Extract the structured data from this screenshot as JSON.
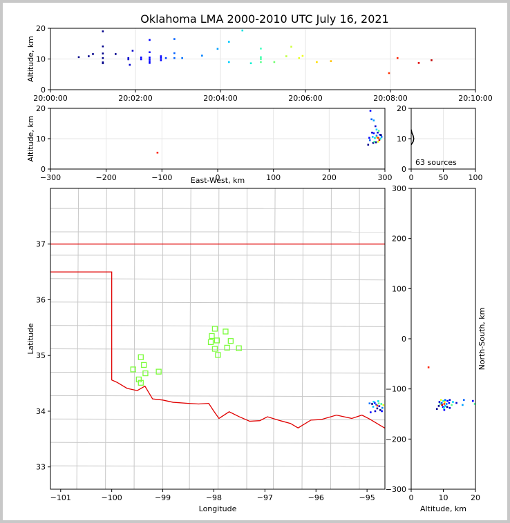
{
  "title": "Oklahoma LMA 2000-2010 UTC July 16, 2021",
  "colors": {
    "state_border": "#e00000",
    "county_lines": "#c8c8c8",
    "stations": "#7cfc3c",
    "grid": "#e6e6e6"
  },
  "chart_data": [
    {
      "type": "scatter",
      "id": "time-altitude",
      "ylabel": "Altitude, km",
      "xlim": [
        "20:00:00",
        "20:10:00"
      ],
      "ylim": [
        0,
        20
      ],
      "xticks": [
        "20:00:00",
        "20:02:00",
        "20:04:00",
        "20:06:00",
        "20:08:00",
        "20:10:00"
      ],
      "yticks": [
        "0",
        "10",
        "20"
      ],
      "points_time_s": [
        [
          40,
          10.6,
          "#00008b"
        ],
        [
          54,
          10.9,
          "#00008b"
        ],
        [
          60,
          11.6,
          "#00008b"
        ],
        [
          74,
          19.0,
          "#00008b"
        ],
        [
          74,
          14.1,
          "#00008b"
        ],
        [
          74,
          11.8,
          "#00008b"
        ],
        [
          74,
          10.3,
          "#00008b"
        ],
        [
          74,
          8.9,
          "#00008b"
        ],
        [
          74,
          8.6,
          "#00008b"
        ],
        [
          92,
          11.6,
          "#00008b"
        ],
        [
          110,
          10.3,
          "#0000cd"
        ],
        [
          112,
          8.1,
          "#0000cd"
        ],
        [
          116,
          12.7,
          "#0000cd"
        ],
        [
          110,
          9.9,
          "#0000cd"
        ],
        [
          128,
          10.5,
          "#0000ff"
        ],
        [
          128,
          9.9,
          "#0000ff"
        ],
        [
          140,
          16.2,
          "#0000ff"
        ],
        [
          140,
          12.2,
          "#0000ff"
        ],
        [
          140,
          10.5,
          "#0000ff"
        ],
        [
          140,
          9.9,
          "#0000ff"
        ],
        [
          140,
          9.3,
          "#0000ff"
        ],
        [
          140,
          8.7,
          "#0000ff"
        ],
        [
          156,
          10.9,
          "#0000ff"
        ],
        [
          156,
          10.3,
          "#0000ff"
        ],
        [
          156,
          9.6,
          "#0000ff"
        ],
        [
          163,
          10.3,
          "#0040ff"
        ],
        [
          175,
          16.5,
          "#0060ff"
        ],
        [
          175,
          11.9,
          "#0060ff"
        ],
        [
          175,
          10.3,
          "#0060ff"
        ],
        [
          186,
          10.3,
          "#0070ff"
        ],
        [
          214,
          11.1,
          "#0080ff"
        ],
        [
          236,
          13.3,
          "#00a0ff"
        ],
        [
          252,
          15.6,
          "#00c8ff"
        ],
        [
          252,
          9.0,
          "#00d0ff"
        ],
        [
          271,
          19.3,
          "#00e0e0"
        ],
        [
          283,
          8.6,
          "#00f0d0"
        ],
        [
          297,
          13.4,
          "#40ffc0"
        ],
        [
          297,
          10.6,
          "#40ffb0"
        ],
        [
          297,
          10.0,
          "#40ffa0"
        ],
        [
          297,
          9.0,
          "#60ff90"
        ],
        [
          316,
          9.0,
          "#70ff70"
        ],
        [
          333,
          10.9,
          "#c0ff40"
        ],
        [
          340,
          14.0,
          "#d0ff40"
        ],
        [
          351,
          10.3,
          "#e8ff20"
        ],
        [
          356,
          11.0,
          "#f0ff20"
        ],
        [
          376,
          9.0,
          "#ffe000"
        ],
        [
          396,
          9.3,
          "#ffc000"
        ],
        [
          478,
          5.4,
          "#ff3000"
        ],
        [
          490,
          10.3,
          "#ff2000"
        ],
        [
          520,
          8.7,
          "#e00000"
        ],
        [
          538,
          9.6,
          "#c00000"
        ]
      ]
    },
    {
      "type": "scatter",
      "id": "eastwest-altitude",
      "xlabel": "East-West, km",
      "ylabel": "Altitude, km",
      "xlim": [
        -300,
        300
      ],
      "ylim": [
        0,
        20
      ],
      "xticks": [
        "−300",
        "−200",
        "−100",
        "0",
        "100",
        "200",
        "300"
      ],
      "yticks": [
        "0",
        "10",
        "20"
      ],
      "points": [
        [
          -108,
          5.4,
          "#ff2000"
        ],
        [
          270,
          8.0,
          "#00008b"
        ],
        [
          272,
          10.3,
          "#0000ff"
        ],
        [
          273,
          9.5,
          "#0060ff"
        ],
        [
          274,
          19.2,
          "#0000ff"
        ],
        [
          276,
          16.4,
          "#0060ff"
        ],
        [
          277,
          12.0,
          "#0000cd"
        ],
        [
          278,
          10.6,
          "#00c0ff"
        ],
        [
          279,
          8.6,
          "#00008b"
        ],
        [
          280,
          16.0,
          "#00a0ff"
        ],
        [
          280,
          11.8,
          "#0000ff"
        ],
        [
          281,
          9.0,
          "#40ffa0"
        ],
        [
          282,
          10.2,
          "#00e0e0"
        ],
        [
          283,
          14.1,
          "#0000cd"
        ],
        [
          284,
          8.8,
          "#00008b"
        ],
        [
          285,
          13.0,
          "#00d0ff"
        ],
        [
          285,
          11.0,
          "#0080ff"
        ],
        [
          286,
          10.4,
          "#ffe000"
        ],
        [
          287,
          12.0,
          "#0000cd"
        ],
        [
          288,
          10.3,
          "#ff3000"
        ],
        [
          288,
          9.0,
          "#e8ff20"
        ],
        [
          289,
          12.6,
          "#60ff90"
        ],
        [
          290,
          9.6,
          "#c00000"
        ],
        [
          291,
          11.3,
          "#0000ff"
        ],
        [
          292,
          10.0,
          "#00f0d0"
        ],
        [
          293,
          11.2,
          "#00008b"
        ],
        [
          294,
          10.6,
          "#0070ff"
        ]
      ]
    },
    {
      "type": "histogram",
      "id": "altitude-histogram",
      "xlim": [
        0,
        100
      ],
      "ylim": [
        0,
        20
      ],
      "xticks": [
        "0",
        "50",
        "100"
      ],
      "yticks": [
        "0",
        "10",
        "20"
      ],
      "annotation": "63 sources",
      "counts_by_altitude": [
        [
          8,
          0
        ],
        [
          9,
          3
        ],
        [
          10,
          4
        ],
        [
          11,
          3
        ],
        [
          12,
          1
        ],
        [
          13,
          0
        ]
      ]
    },
    {
      "type": "map",
      "id": "plan-view",
      "xlabel": "Longitude",
      "ylabel": "Latitude",
      "xlim": [
        -101.2,
        -94.65
      ],
      "ylim": [
        32.6,
        38.0
      ],
      "xticks": [
        "−101",
        "−100",
        "−99",
        "−98",
        "−97",
        "−96",
        "−95"
      ],
      "yticks": [
        "33",
        "34",
        "35",
        "36",
        "37"
      ],
      "stations": [
        [
          -99.43,
          34.97
        ],
        [
          -99.37,
          34.83
        ],
        [
          -99.58,
          34.75
        ],
        [
          -99.34,
          34.68
        ],
        [
          -99.47,
          34.57
        ],
        [
          -99.43,
          34.51
        ],
        [
          -99.08,
          34.71
        ],
        [
          -97.98,
          35.48
        ],
        [
          -98.04,
          35.35
        ],
        [
          -97.77,
          35.43
        ],
        [
          -98.06,
          35.24
        ],
        [
          -97.94,
          35.27
        ],
        [
          -97.67,
          35.26
        ],
        [
          -97.98,
          35.12
        ],
        [
          -97.74,
          35.14
        ],
        [
          -97.51,
          35.13
        ],
        [
          -97.92,
          35.01
        ]
      ],
      "points": [
        [
          -94.9,
          34.13,
          "#00008b"
        ],
        [
          -94.85,
          34.15,
          "#0000ff"
        ],
        [
          -94.82,
          34.12,
          "#0060ff"
        ],
        [
          -94.88,
          34.08,
          "#00c0ff"
        ],
        [
          -94.8,
          34.05,
          "#00008b"
        ],
        [
          -94.76,
          34.09,
          "#0000cd"
        ],
        [
          -94.93,
          33.98,
          "#0000ff"
        ],
        [
          -94.72,
          34.13,
          "#40ffa0"
        ],
        [
          -94.78,
          34.18,
          "#00e0e0"
        ],
        [
          -94.7,
          34.06,
          "#0080ff"
        ],
        [
          -94.74,
          34.02,
          "#00008b"
        ],
        [
          -94.84,
          34.0,
          "#0000cd"
        ],
        [
          -94.68,
          34.11,
          "#e8ff20"
        ],
        [
          -94.95,
          34.14,
          "#0070ff"
        ],
        [
          -94.87,
          34.17,
          "#00d0ff"
        ],
        [
          -94.8,
          34.1,
          "#ff3000"
        ],
        [
          -94.71,
          34.0,
          "#0000ff"
        ],
        [
          -94.77,
          34.14,
          "#60ff90"
        ]
      ]
    },
    {
      "type": "scatter",
      "id": "altitude-northsouth",
      "xlabel": "Altitude, km",
      "ylabel": "North-South, km",
      "xlim": [
        0,
        20
      ],
      "ylim": [
        -300,
        300
      ],
      "xticks": [
        "0",
        "10",
        "20"
      ],
      "yticks": [
        "−300",
        "−200",
        "−100",
        "0",
        "100",
        "200",
        "300"
      ],
      "points": [
        [
          5.4,
          -57,
          "#ff2000"
        ],
        [
          8.0,
          -140,
          "#00008b"
        ],
        [
          8.6,
          -134,
          "#00008b"
        ],
        [
          8.8,
          -126,
          "#0000cd"
        ],
        [
          9.0,
          -130,
          "#40ffa0"
        ],
        [
          9.3,
          -122,
          "#e8ff20"
        ],
        [
          9.5,
          -128,
          "#0060ff"
        ],
        [
          9.6,
          -132,
          "#c00000"
        ],
        [
          9.9,
          -136,
          "#0000ff"
        ],
        [
          10.0,
          -124,
          "#00f0d0"
        ],
        [
          10.2,
          -138,
          "#00e0e0"
        ],
        [
          10.3,
          -130,
          "#ff3000"
        ],
        [
          10.3,
          -142,
          "#0000ff"
        ],
        [
          10.4,
          -126,
          "#ffe000"
        ],
        [
          10.6,
          -134,
          "#00c0ff"
        ],
        [
          10.6,
          -122,
          "#0070ff"
        ],
        [
          11.0,
          -130,
          "#0080ff"
        ],
        [
          11.2,
          -136,
          "#00008b"
        ],
        [
          11.3,
          -124,
          "#0000ff"
        ],
        [
          11.8,
          -128,
          "#0000ff"
        ],
        [
          12.0,
          -138,
          "#0000cd"
        ],
        [
          12.0,
          -122,
          "#0000cd"
        ],
        [
          12.6,
          -132,
          "#60ff90"
        ],
        [
          13.0,
          -126,
          "#00d0ff"
        ],
        [
          14.1,
          -128,
          "#0000cd"
        ],
        [
          16.0,
          -132,
          "#00a0ff"
        ],
        [
          16.4,
          -122,
          "#0060ff"
        ],
        [
          19.2,
          -124,
          "#0000ff"
        ],
        [
          19.8,
          -130,
          "#40ffa0"
        ]
      ]
    }
  ]
}
